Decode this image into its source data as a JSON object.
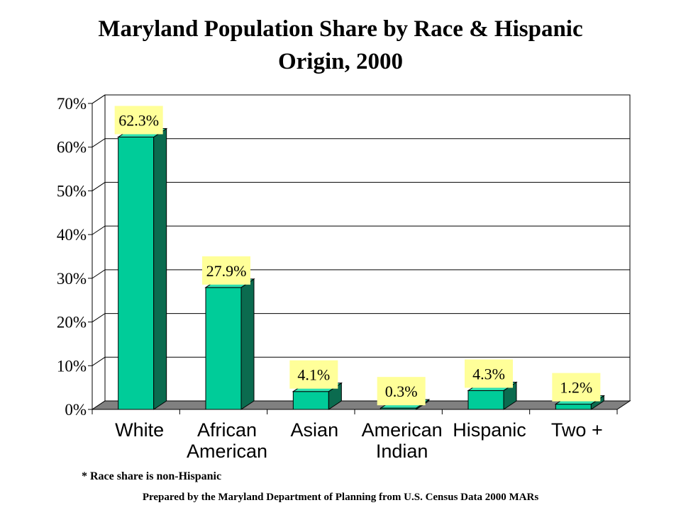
{
  "chart_data": {
    "type": "bar",
    "title_line1": "Maryland Population Share by Race & Hispanic",
    "title_line2": "Origin, 2000",
    "categories": [
      [
        "White"
      ],
      [
        "African",
        "American"
      ],
      [
        "Asian"
      ],
      [
        "American",
        "Indian"
      ],
      [
        "Hispanic"
      ],
      [
        "Two +"
      ]
    ],
    "values": [
      62.3,
      27.9,
      4.1,
      0.3,
      4.3,
      1.2
    ],
    "data_labels": [
      "62.3%",
      "27.9%",
      "4.1%",
      "0.3%",
      "4.3%",
      "1.2%"
    ],
    "y_ticks": [
      "0%",
      "10%",
      "20%",
      "30%",
      "40%",
      "50%",
      "60%",
      "70%"
    ],
    "ylim": [
      0,
      70
    ],
    "grid": true,
    "legend": "none",
    "colors": {
      "bar_front": "#00cc99",
      "bar_side": "#0b6b4f",
      "bar_top": "#2fe0b0",
      "floor": "#808080",
      "label_bg": "#ffff99",
      "grid": "#000000"
    }
  },
  "footnote": "* Race share is non-Hispanic",
  "credit": "Prepared by the Maryland Department of Planning from U.S. Census Data 2000 MARs"
}
